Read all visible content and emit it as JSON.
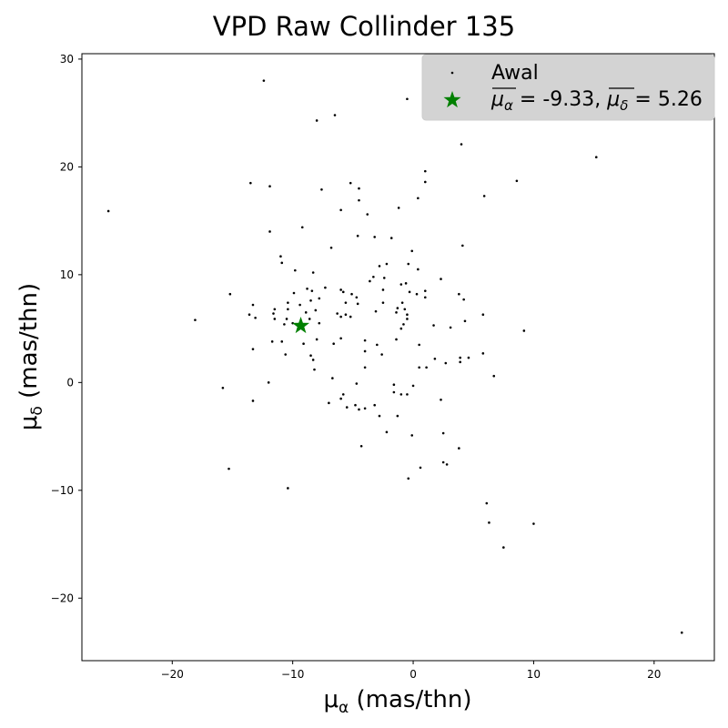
{
  "chart_data": {
    "type": "scatter",
    "title": "VPD Raw Collinder 135",
    "xlabel": {
      "symbol": "μ",
      "sub": "α",
      "unit": " (mas/thn)"
    },
    "ylabel": {
      "symbol": "μ",
      "sub": "δ",
      "unit": " (mas/thn)"
    },
    "xlim": [
      -27.5,
      25
    ],
    "ylim": [
      -25.8,
      30.5
    ],
    "xticks": [
      -20,
      -10,
      0,
      10,
      20
    ],
    "yticks": [
      -20,
      -10,
      0,
      10,
      20,
      30
    ],
    "grid": false,
    "legend_position": "top-right",
    "series": [
      {
        "name": "Awal",
        "color": "#000000",
        "marker": "dot",
        "points": [
          [
            -12.4,
            28.0
          ],
          [
            -0.5,
            26.3
          ],
          [
            -6.5,
            24.8
          ],
          [
            -8.0,
            24.3
          ],
          [
            4.0,
            22.1
          ],
          [
            15.2,
            20.9
          ],
          [
            1.0,
            19.6
          ],
          [
            -13.5,
            18.5
          ],
          [
            -11.9,
            18.2
          ],
          [
            -5.2,
            18.5
          ],
          [
            -4.5,
            18.0
          ],
          [
            1.0,
            18.6
          ],
          [
            8.6,
            18.7
          ],
          [
            -7.6,
            17.9
          ],
          [
            0.4,
            17.1
          ],
          [
            5.9,
            17.3
          ],
          [
            -4.5,
            16.9
          ],
          [
            -25.3,
            15.9
          ],
          [
            -6.0,
            16.0
          ],
          [
            -3.8,
            15.6
          ],
          [
            -1.2,
            16.2
          ],
          [
            -9.2,
            14.4
          ],
          [
            -11.9,
            14.0
          ],
          [
            -4.6,
            13.6
          ],
          [
            -3.2,
            13.5
          ],
          [
            -1.8,
            13.4
          ],
          [
            -6.8,
            12.5
          ],
          [
            -0.1,
            12.2
          ],
          [
            4.1,
            12.7
          ],
          [
            -11.0,
            11.7
          ],
          [
            -10.9,
            11.1
          ],
          [
            -2.8,
            10.8
          ],
          [
            -2.2,
            11.0
          ],
          [
            -0.4,
            11.0
          ],
          [
            -9.8,
            10.4
          ],
          [
            -8.3,
            10.2
          ],
          [
            0.4,
            10.5
          ],
          [
            -3.3,
            9.8
          ],
          [
            -3.6,
            9.4
          ],
          [
            -2.4,
            9.7
          ],
          [
            -0.6,
            9.2
          ],
          [
            2.3,
            9.6
          ],
          [
            -1.0,
            9.1
          ],
          [
            -15.2,
            8.2
          ],
          [
            -9.9,
            8.3
          ],
          [
            -8.8,
            8.7
          ],
          [
            -8.4,
            8.5
          ],
          [
            -7.3,
            8.8
          ],
          [
            -6.0,
            8.6
          ],
          [
            -5.8,
            8.4
          ],
          [
            -5.1,
            8.2
          ],
          [
            -4.7,
            7.9
          ],
          [
            -2.5,
            8.6
          ],
          [
            -0.3,
            8.4
          ],
          [
            0.3,
            8.2
          ],
          [
            1.0,
            8.5
          ],
          [
            1.0,
            7.9
          ],
          [
            3.8,
            8.2
          ],
          [
            4.2,
            7.7
          ],
          [
            -13.3,
            7.2
          ],
          [
            -10.4,
            7.4
          ],
          [
            -9.4,
            7.2
          ],
          [
            -8.5,
            7.6
          ],
          [
            -7.8,
            7.8
          ],
          [
            -5.6,
            7.4
          ],
          [
            -4.6,
            7.3
          ],
          [
            -2.5,
            7.4
          ],
          [
            -1.3,
            6.9
          ],
          [
            -0.9,
            7.4
          ],
          [
            -11.5,
            6.8
          ],
          [
            -10.4,
            6.8
          ],
          [
            -8.9,
            6.5
          ],
          [
            -8.1,
            6.7
          ],
          [
            -6.3,
            6.4
          ],
          [
            -5.6,
            6.3
          ],
          [
            -5.2,
            6.1
          ],
          [
            -3.1,
            6.6
          ],
          [
            -1.4,
            6.5
          ],
          [
            -0.7,
            6.8
          ],
          [
            -0.5,
            6.3
          ],
          [
            -13.6,
            6.3
          ],
          [
            -13.1,
            6.0
          ],
          [
            -11.6,
            6.4
          ],
          [
            -11.5,
            5.9
          ],
          [
            -10.5,
            5.9
          ],
          [
            -10.0,
            5.5
          ],
          [
            -8.6,
            5.9
          ],
          [
            -7.8,
            5.5
          ],
          [
            -6.0,
            6.1
          ],
          [
            -0.5,
            5.9
          ],
          [
            5.8,
            6.3
          ],
          [
            -10.7,
            5.4
          ],
          [
            -0.8,
            5.4
          ],
          [
            -1.0,
            5.0
          ],
          [
            1.7,
            5.3
          ],
          [
            3.1,
            5.1
          ],
          [
            -11.7,
            3.8
          ],
          [
            -10.9,
            3.8
          ],
          [
            -8.0,
            4.0
          ],
          [
            -6.0,
            4.1
          ],
          [
            -4.0,
            3.9
          ],
          [
            -1.4,
            4.0
          ],
          [
            -9.1,
            3.6
          ],
          [
            -6.6,
            3.6
          ],
          [
            -3.0,
            3.5
          ],
          [
            0.5,
            3.5
          ],
          [
            -13.3,
            3.1
          ],
          [
            -10.6,
            2.6
          ],
          [
            -4.0,
            2.9
          ],
          [
            -2.6,
            2.6
          ],
          [
            -8.5,
            2.5
          ],
          [
            -8.3,
            2.1
          ],
          [
            1.8,
            2.2
          ],
          [
            3.9,
            2.3
          ],
          [
            4.6,
            2.3
          ],
          [
            2.7,
            1.8
          ],
          [
            3.9,
            1.9
          ],
          [
            -4.0,
            1.4
          ],
          [
            0.5,
            1.4
          ],
          [
            1.1,
            1.4
          ],
          [
            -8.2,
            1.2
          ],
          [
            -6.7,
            0.4
          ],
          [
            6.7,
            0.6
          ],
          [
            -12.0,
            0.0
          ],
          [
            -15.8,
            -0.5
          ],
          [
            -1.6,
            -0.2
          ],
          [
            -4.7,
            -0.1
          ],
          [
            0.0,
            -0.3
          ],
          [
            -1.6,
            -0.9
          ],
          [
            -1.0,
            -1.1
          ],
          [
            -0.5,
            -1.1
          ],
          [
            -5.8,
            -1.1
          ],
          [
            -13.3,
            -1.7
          ],
          [
            -6.0,
            -1.5
          ],
          [
            -7.0,
            -1.9
          ],
          [
            -4.8,
            -2.1
          ],
          [
            -5.5,
            -2.3
          ],
          [
            -3.2,
            -2.1
          ],
          [
            -4.5,
            -2.5
          ],
          [
            -4.0,
            -2.4
          ],
          [
            2.3,
            -1.6
          ],
          [
            -2.8,
            -3.1
          ],
          [
            -2.2,
            -4.6
          ],
          [
            -1.3,
            -3.1
          ],
          [
            2.5,
            -4.7
          ],
          [
            -0.1,
            -4.9
          ],
          [
            -4.3,
            -5.9
          ],
          [
            3.8,
            -6.1
          ],
          [
            -15.3,
            -8.0
          ],
          [
            2.5,
            -7.4
          ],
          [
            2.8,
            -7.6
          ],
          [
            0.6,
            -7.9
          ],
          [
            -0.4,
            -8.9
          ],
          [
            -10.4,
            -9.8
          ],
          [
            6.1,
            -11.2
          ],
          [
            6.3,
            -13.0
          ],
          [
            10.0,
            -13.1
          ],
          [
            7.5,
            -15.3
          ],
          [
            22.3,
            -23.2
          ],
          [
            -18.1,
            5.8
          ],
          [
            9.2,
            4.8
          ],
          [
            5.8,
            2.7
          ],
          [
            4.3,
            5.7
          ]
        ]
      }
    ],
    "mean": {
      "name_parts": {
        "a": "μ",
        "a_sub": "α",
        "a_val": "-9.33",
        "d": "μ",
        "d_sub": "δ",
        "d_val": "5.26"
      },
      "x": -9.33,
      "y": 5.26,
      "color": "#008000",
      "marker": "star"
    }
  }
}
